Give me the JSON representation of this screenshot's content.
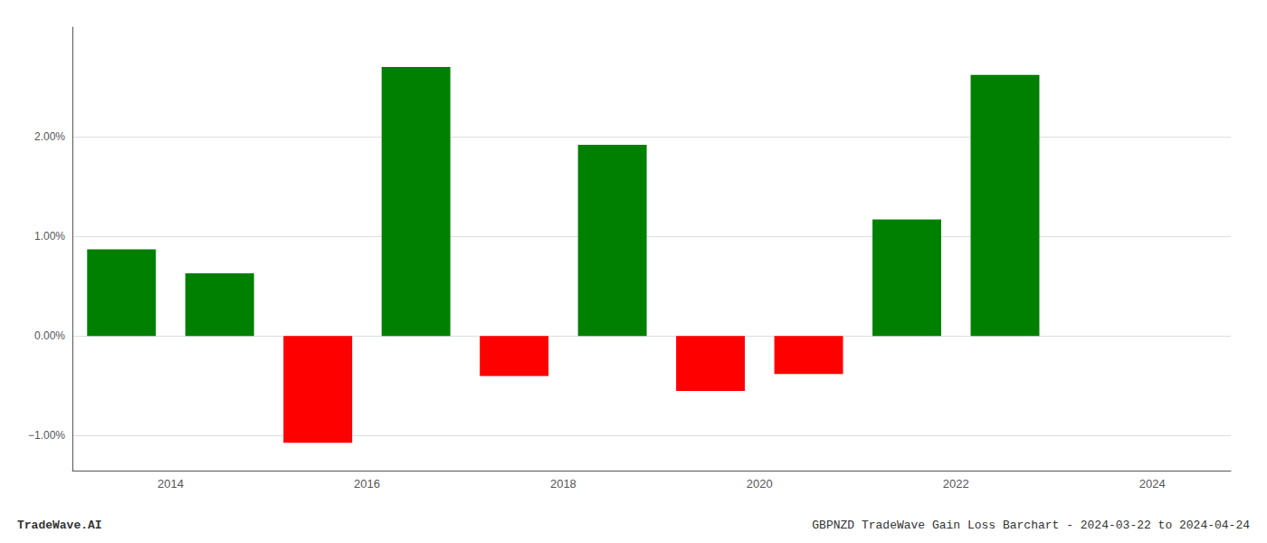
{
  "chart_data": {
    "type": "bar",
    "title": "GBPNZD TradeWave Gain Loss Barchart - 2024-03-22 to 2024-04-24",
    "annotations": [
      "TradeWave.AI"
    ],
    "x": [
      2013.5,
      2014.5,
      2015.5,
      2016.5,
      2017.5,
      2018.5,
      2019.5,
      2020.5,
      2021.5,
      2022.5
    ],
    "values": [
      0.87,
      0.63,
      -1.07,
      2.7,
      -0.4,
      1.92,
      -0.55,
      -0.38,
      1.17,
      2.62
    ],
    "colors": [
      "#008000",
      "#008000",
      "#ff0000",
      "#008000",
      "#ff0000",
      "#008000",
      "#ff0000",
      "#ff0000",
      "#008000",
      "#008000"
    ],
    "xlim": [
      2013.0,
      2024.8
    ],
    "xticks": [
      2014,
      2016,
      2018,
      2020,
      2022,
      2024
    ],
    "ylim": [
      -1.35,
      3.1
    ],
    "yticks": [
      {
        "value": -1.0,
        "label": "−1.00%"
      },
      {
        "value": 0.0,
        "label": "0.00%"
      },
      {
        "value": 1.0,
        "label": "1.00%"
      },
      {
        "value": 2.0,
        "label": "2.00%"
      }
    ],
    "grid": true
  }
}
